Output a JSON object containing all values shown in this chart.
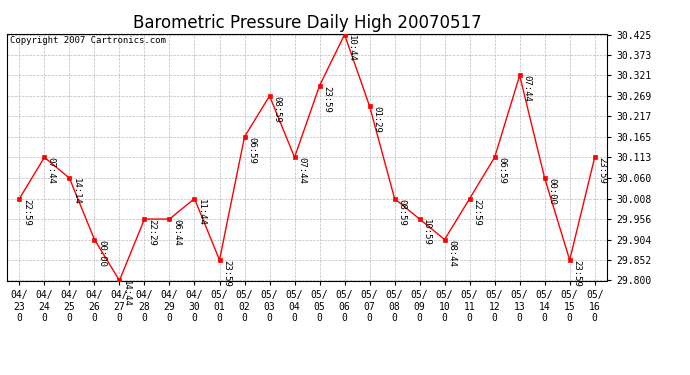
{
  "title": "Barometric Pressure Daily High 20070517",
  "copyright": "Copyright 2007 Cartronics.com",
  "x_labels": [
    "04/23",
    "04/24",
    "04/25",
    "04/26",
    "04/27",
    "04/28",
    "04/29",
    "04/30",
    "05/01",
    "05/02",
    "05/03",
    "05/04",
    "05/05",
    "05/06",
    "05/07",
    "05/08",
    "05/09",
    "05/10",
    "05/11",
    "05/12",
    "05/13",
    "05/14",
    "05/15",
    "05/16"
  ],
  "y_values": [
    30.008,
    30.113,
    30.06,
    29.904,
    29.8,
    29.956,
    29.956,
    30.008,
    29.852,
    30.165,
    30.269,
    30.113,
    30.295,
    30.425,
    30.243,
    30.008,
    29.956,
    29.904,
    30.008,
    30.113,
    30.321,
    30.06,
    29.852,
    30.113
  ],
  "point_labels": [
    "22:59",
    "07:44",
    "14:14",
    "00:00",
    "14:44",
    "22:29",
    "06:44",
    "11:44",
    "23:59",
    "06:59",
    "08:59",
    "07:44",
    "23:59",
    "10:44",
    "01:29",
    "08:59",
    "10:59",
    "08:44",
    "22:59",
    "06:59",
    "07:44",
    "00:00",
    "23:59",
    "23:59"
  ],
  "ylim_min": 29.8,
  "ylim_max": 30.425,
  "yticks": [
    29.8,
    29.852,
    29.904,
    29.956,
    30.008,
    30.06,
    30.113,
    30.165,
    30.217,
    30.269,
    30.321,
    30.373,
    30.425
  ],
  "line_color": "red",
  "marker_color": "red",
  "marker_size": 3,
  "bg_color": "#ffffff",
  "grid_color": "#bbbbbb",
  "title_fontsize": 12,
  "tick_fontsize": 7,
  "annotation_fontsize": 6.5,
  "copyright_fontsize": 6.5
}
